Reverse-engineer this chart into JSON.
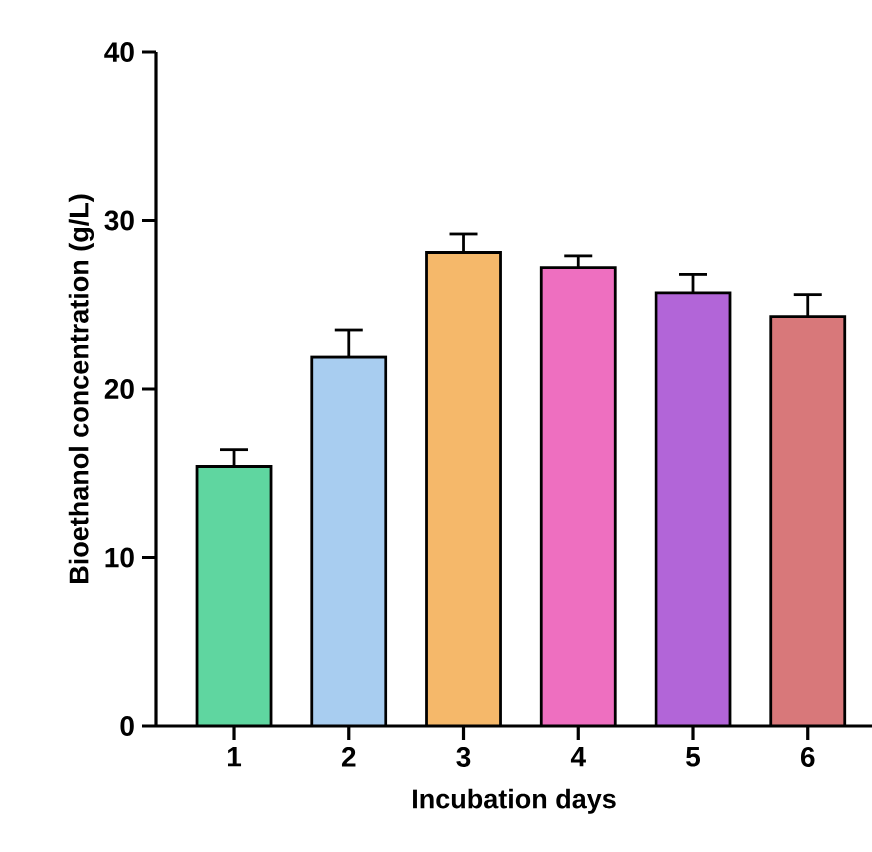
{
  "chart_data": {
    "type": "bar",
    "xlabel": "Incubation days",
    "ylabel": "Bioethanol concentration (g/L)",
    "categories": [
      "1",
      "2",
      "3",
      "4",
      "5",
      "6"
    ],
    "values": [
      15.4,
      21.9,
      28.1,
      27.2,
      25.7,
      24.3
    ],
    "errors": [
      1.0,
      1.6,
      1.1,
      0.7,
      1.1,
      1.3
    ],
    "colors": [
      "#5fd6a0",
      "#a8cdf0",
      "#f5b86a",
      "#ee6fc0",
      "#b265d8",
      "#d8787a"
    ],
    "ylim": [
      0,
      40
    ],
    "yticks": [
      0,
      10,
      20,
      30,
      40
    ],
    "grid": false
  }
}
